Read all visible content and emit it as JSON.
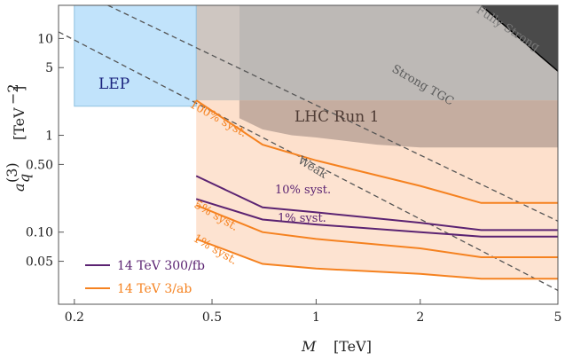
{
  "chart_data": {
    "type": "line",
    "x_scale": "log",
    "y_scale": "log",
    "xlim": [
      0.18,
      5.0
    ],
    "ylim": [
      0.018,
      22
    ],
    "xticks": [
      {
        "v": 0.2,
        "label": "0.2"
      },
      {
        "v": 0.5,
        "label": "0.5"
      },
      {
        "v": 1,
        "label": "1"
      },
      {
        "v": 2,
        "label": "2"
      },
      {
        "v": 5,
        "label": "5"
      }
    ],
    "yticks": [
      {
        "v": 0.05,
        "label": "0.05"
      },
      {
        "v": 0.1,
        "label": "0.10"
      },
      {
        "v": 0.5,
        "label": "0.50"
      },
      {
        "v": 1,
        "label": "1"
      },
      {
        "v": 5,
        "label": "5"
      },
      {
        "v": 10,
        "label": "10"
      }
    ],
    "xlabel_main": "M",
    "xlabel_unit": "[TeV]",
    "ylabel_symbol": "a",
    "ylabel_sub": "q",
    "ylabel_sup": "(3)",
    "ylabel_unit": "[TeV",
    "ylabel_unit_sup": "−2",
    "ylabel_unit_close": "]",
    "colors": {
      "lep": "#c1e3fb",
      "lep_edge": "#8fc1e0",
      "lhc": "#bfa79b",
      "peach": "#fde0cc",
      "orange": "#f58220",
      "purple": "#5b2372",
      "gray_band": "#a6a6a6",
      "dark": "#555555"
    },
    "regions": {
      "lep": {
        "label": "LEP",
        "x": [
          0.2,
          0.45
        ],
        "y_min": 2.0
      },
      "lhc_run1": {
        "label": "LHC Run 1",
        "boundary": [
          [
            0.6,
            1.5
          ],
          [
            0.7,
            1.15
          ],
          [
            0.85,
            1.0
          ],
          [
            1.0,
            0.95
          ],
          [
            1.5,
            0.8
          ],
          [
            2.0,
            0.75
          ],
          [
            5.0,
            0.75
          ]
        ]
      },
      "fully_strong": {
        "label": "Fully Strong"
      }
    },
    "reference_lines": [
      {
        "name": "Strong TGC",
        "points": [
          [
            0.25,
            22
          ],
          [
            5.0,
            0.13
          ]
        ]
      },
      {
        "name": "Weak",
        "points": [
          [
            0.18,
            11.7
          ],
          [
            5.0,
            0.025
          ]
        ]
      }
    ],
    "series": [
      {
        "name": "14 TeV 3/ab, 100% syst.",
        "label": "100% syst.",
        "group": "orange",
        "points": [
          [
            0.45,
            2.3
          ],
          [
            0.7,
            0.8
          ],
          [
            1.0,
            0.55
          ],
          [
            2.0,
            0.3
          ],
          [
            3.0,
            0.2
          ],
          [
            5.0,
            0.2
          ]
        ]
      },
      {
        "name": "14 TeV 300/fb, 10% syst.",
        "label": "10% syst.",
        "group": "purple",
        "points": [
          [
            0.45,
            0.38
          ],
          [
            0.7,
            0.18
          ],
          [
            1.0,
            0.16
          ],
          [
            2.0,
            0.125
          ],
          [
            3.0,
            0.105
          ],
          [
            5.0,
            0.105
          ]
        ]
      },
      {
        "name": "14 TeV 300/fb, 1% syst.",
        "label": "1% syst.",
        "group": "purple",
        "points": [
          [
            0.45,
            0.22
          ],
          [
            0.7,
            0.135
          ],
          [
            1.0,
            0.12
          ],
          [
            2.0,
            0.1
          ],
          [
            3.0,
            0.09
          ],
          [
            5.0,
            0.09
          ]
        ]
      },
      {
        "name": "14 TeV 3/ab, 5% syst.",
        "label": "5% syst.",
        "group": "orange",
        "points": [
          [
            0.45,
            0.19
          ],
          [
            0.7,
            0.1
          ],
          [
            1.0,
            0.085
          ],
          [
            2.0,
            0.068
          ],
          [
            3.0,
            0.055
          ],
          [
            5.0,
            0.055
          ]
        ]
      },
      {
        "name": "14 TeV 3/ab, 1% syst.",
        "label": "1% syst.",
        "group": "orange",
        "points": [
          [
            0.45,
            0.085
          ],
          [
            0.7,
            0.047
          ],
          [
            1.0,
            0.042
          ],
          [
            2.0,
            0.037
          ],
          [
            3.0,
            0.033
          ],
          [
            5.0,
            0.033
          ]
        ]
      }
    ],
    "legend": [
      {
        "label": "14 TeV  300/fb",
        "group": "purple"
      },
      {
        "label": "14 TeV  3/ab",
        "group": "orange"
      }
    ]
  }
}
